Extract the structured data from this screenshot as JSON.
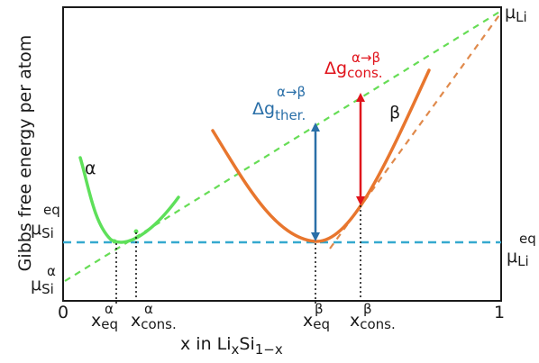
{
  "diagram": {
    "y_axis_title": "Gibbs free energy per atom",
    "x_axis_title_prefix": "x in Li",
    "x_axis_title_sub1": "x",
    "x_axis_title_mid": "Si",
    "x_axis_title_sub2": "1−x",
    "x_tick_left": "0",
    "x_tick_right": "1",
    "phase_alpha": "α",
    "phase_beta": "β",
    "mu_li_top": {
      "base": "μ",
      "sub": "Li"
    },
    "mu_li_eq": {
      "base": "μ",
      "sub": "Li",
      "sup": "eq"
    },
    "mu_si_eq": {
      "base": "μ",
      "sub": "Si",
      "sup": "eq"
    },
    "mu_si_alpha": {
      "base": "μ",
      "sub": "Si",
      "sup": "α"
    },
    "x_eq_alpha": {
      "base": "x",
      "sub": "eq",
      "sup": "α"
    },
    "x_cons_alpha": {
      "base": "x",
      "sub": "cons.",
      "sup": "α"
    },
    "x_eq_beta": {
      "base": "x",
      "sub": "eq",
      "sup": "β"
    },
    "x_cons_beta": {
      "base": "x",
      "sub": "cons.",
      "sup": "β"
    },
    "dg_ther": {
      "base": "Δg",
      "sub": "ther.",
      "sup": "α→β"
    },
    "dg_cons": {
      "base": "Δg",
      "sub": "cons.",
      "sup": "α→β"
    },
    "colors": {
      "alpha_curve": "#5ee05a",
      "beta_curve": "#e8762e",
      "common_tangent": "#35a9cf",
      "alpha_tangent": "#66dd55",
      "beta_tangent": "#e08a4c",
      "dg_ther": "#2a6fa8",
      "dg_cons": "#e0141c",
      "axis": "#1a1a1a"
    }
  }
}
